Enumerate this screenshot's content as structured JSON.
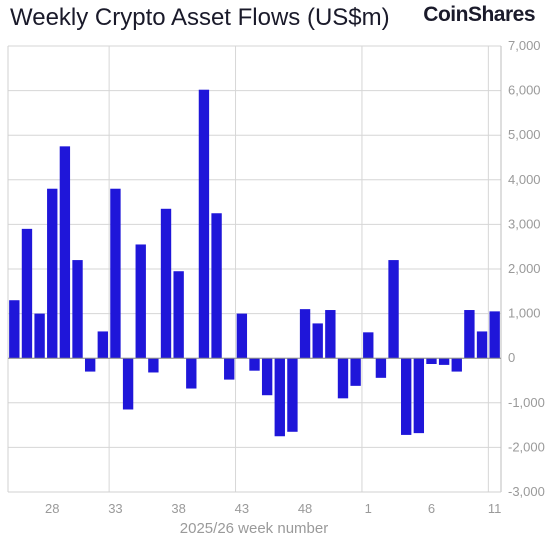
{
  "header": {
    "title": "Weekly Crypto Asset Flows (US$m)",
    "brand": "CoinShares"
  },
  "chart_data": {
    "type": "bar",
    "title": "Weekly Crypto Asset Flows (US$m)",
    "xlabel": "2025/26 week number",
    "ylabel": "",
    "ylim": [
      -3000,
      7000
    ],
    "yticks": [
      -3000,
      -2000,
      -1000,
      0,
      1000,
      2000,
      3000,
      4000,
      5000,
      6000,
      7000
    ],
    "ytick_labels": [
      "-3,000",
      "-2,000",
      "-1,000",
      "0",
      "1,000",
      "2,000",
      "3,000",
      "4,000",
      "5,000",
      "6,000",
      "7,000"
    ],
    "y_axis_side": "right",
    "grid": true,
    "bar_color": "#1f16d9",
    "weeks": [
      "25",
      "26",
      "27",
      "28",
      "29",
      "30",
      "31",
      "32",
      "33",
      "34",
      "35",
      "36",
      "37",
      "38",
      "39",
      "40",
      "41",
      "42",
      "43",
      "44",
      "45",
      "46",
      "47",
      "48",
      "49",
      "50",
      "51",
      "52",
      "1",
      "2",
      "3",
      "4",
      "5",
      "6",
      "7",
      "8",
      "9",
      "10",
      "11"
    ],
    "xtick_labels": [
      "28",
      "33",
      "38",
      "43",
      "48",
      "1",
      "6",
      "11"
    ],
    "values": [
      1300,
      2900,
      1000,
      3800,
      4750,
      2200,
      -300,
      600,
      3800,
      -1150,
      2550,
      -320,
      3350,
      1950,
      -680,
      6020,
      3250,
      -480,
      1000,
      -280,
      -830,
      -1750,
      -1650,
      1100,
      780,
      1080,
      -900,
      -620,
      580,
      -440,
      2200,
      -1720,
      -1680,
      -130,
      -150,
      -300,
      1080,
      600,
      1050
    ]
  }
}
